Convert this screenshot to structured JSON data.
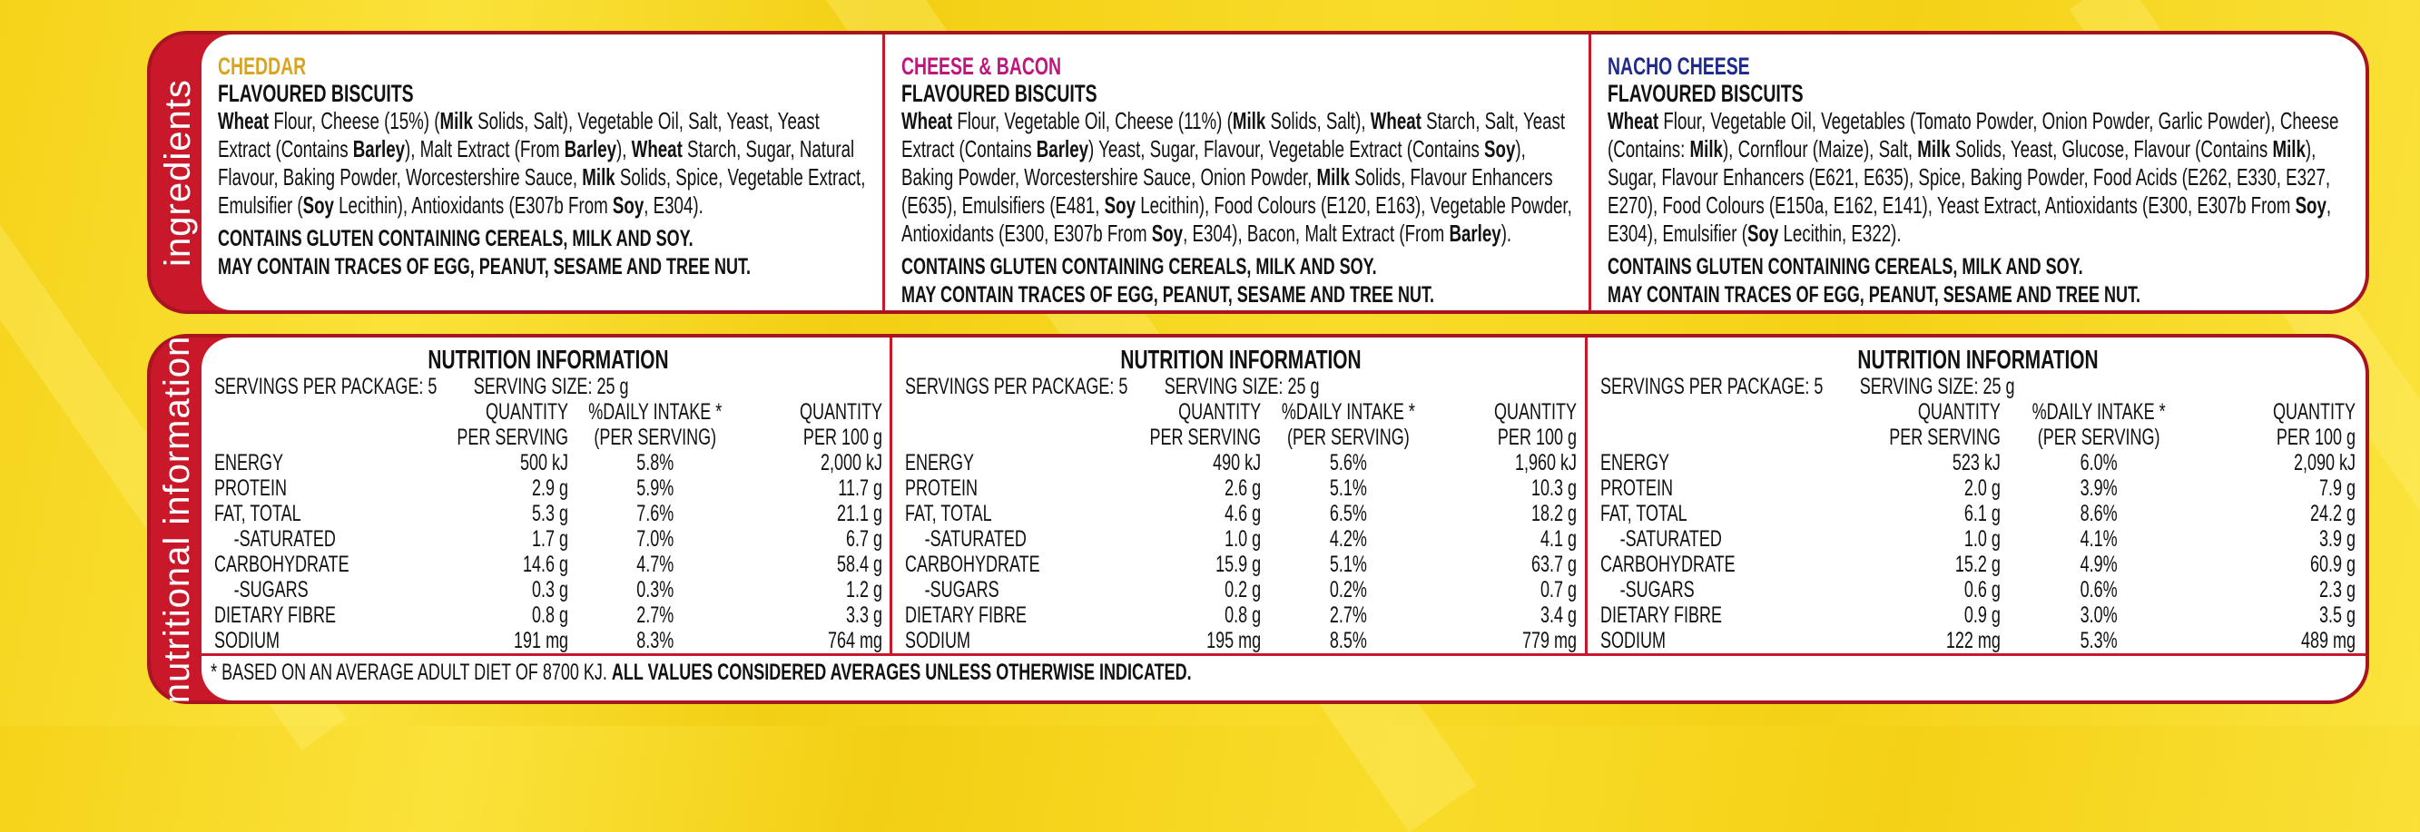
{
  "colors": {
    "background": "#f5d31a",
    "panel_red": "#c8182a",
    "cheddar": "#d9a520",
    "cheese_bacon": "#c0157a",
    "nacho": "#1f2a8a"
  },
  "ingredients": {
    "band_label": "ingredients",
    "products": [
      {
        "name": "CHEDDAR",
        "subtitle": "FLAVOURED BISCUITS",
        "text": [
          [
            "Wheat",
            1
          ],
          [
            " Flour, Cheese (15%) (",
            0
          ],
          [
            "Milk",
            1
          ],
          [
            " Solids, Salt), Vegetable Oil, Salt, Yeast, Yeast Extract (Contains ",
            0
          ],
          [
            "Barley",
            1
          ],
          [
            "), Malt Extract (From ",
            0
          ],
          [
            "Barley",
            1
          ],
          "), ",
          [
            "Wheat",
            1
          ],
          [
            " Starch, Sugar, Natural Flavour, Baking Powder, Worcestershire Sauce, ",
            0
          ],
          [
            "Milk",
            1
          ],
          [
            " Solids, Spice, Vegetable Extract, Emulsifier (",
            0
          ],
          [
            "Soy",
            1
          ],
          [
            " Lecithin), Antioxidants (E307b From ",
            0
          ],
          [
            "Soy",
            1
          ],
          [
            ", E304).",
            0
          ]
        ],
        "allergen1": "CONTAINS GLUTEN CONTAINING CEREALS, MILK AND SOY.",
        "allergen2": "MAY CONTAIN TRACES OF EGG, PEANUT, SESAME AND TREE NUT."
      },
      {
        "name": "CHEESE & BACON",
        "subtitle": "FLAVOURED BISCUITS",
        "text": [
          [
            "Wheat",
            1
          ],
          [
            " Flour, Vegetable Oil, Cheese (11%) (",
            0
          ],
          [
            "Milk",
            1
          ],
          [
            " Solids, Salt), ",
            0
          ],
          [
            "Wheat",
            1
          ],
          [
            " Starch, Salt, Yeast Extract (Contains ",
            0
          ],
          [
            "Barley",
            1
          ],
          [
            ") Yeast, Sugar, Flavour, Vegetable Extract (Contains ",
            0
          ],
          [
            "Soy",
            1
          ],
          [
            "), Baking Powder, Worcestershire Sauce, Onion Powder, ",
            0
          ],
          [
            "Milk",
            1
          ],
          [
            " Solids, Flavour Enhancers (E635), Emulsifiers (E481, ",
            0
          ],
          [
            "Soy",
            1
          ],
          [
            " Lecithin), Food Colours (E120, E163), Vegetable Powder, Antioxidants (E300, E307b From ",
            0
          ],
          [
            "Soy",
            1
          ],
          [
            ", E304), Bacon, Malt Extract (From ",
            0
          ],
          [
            "Barley",
            1
          ],
          [
            ").",
            0
          ]
        ],
        "allergen1": "CONTAINS GLUTEN CONTAINING CEREALS, MILK AND SOY.",
        "allergen2": "MAY CONTAIN TRACES OF EGG, PEANUT, SESAME AND TREE NUT."
      },
      {
        "name": "NACHO CHEESE",
        "subtitle": "FLAVOURED BISCUITS",
        "text": [
          [
            "Wheat",
            1
          ],
          [
            " Flour, Vegetable Oil, Vegetables (Tomato Powder, Onion Powder, Garlic Powder), Cheese (Contains: ",
            0
          ],
          [
            "Milk",
            1
          ],
          [
            "), Cornflour (Maize), Salt, ",
            0
          ],
          [
            "Milk",
            1
          ],
          [
            " Solids, Yeast, Glucose, Flavour (Contains ",
            0
          ],
          [
            "Milk",
            1
          ],
          [
            "), Sugar, Flavour Enhancers (E621, E635), Spice, Baking Powder, Food Acids (E262, E330, E327, E270), Food Colours (E150a, E162, E141), Yeast Extract, Antioxidants (E300, E307b From ",
            0
          ],
          [
            "Soy",
            1
          ],
          [
            ", E304), Emulsifier (",
            0
          ],
          [
            "Soy",
            1
          ],
          [
            " Lecithin, E322).",
            0
          ]
        ],
        "allergen1": "CONTAINS GLUTEN CONTAINING CEREALS, MILK AND SOY.",
        "allergen2": "MAY CONTAIN TRACES OF EGG, PEANUT, SESAME AND TREE NUT."
      }
    ]
  },
  "nutrition": {
    "band_label": "nutritional information",
    "footnote_plain": "* BASED ON AN AVERAGE ADULT DIET OF 8700 KJ. ",
    "footnote_bold": "ALL VALUES CONSIDERED AVERAGES UNLESS OTHERWISE INDICATED.",
    "headers": {
      "qty1": "QUANTITY",
      "qty2": "PER SERVING",
      "di1": "%DAILY INTAKE *",
      "di2": "(PER SERVING)",
      "h1": "QUANTITY",
      "h2": "PER 100 g"
    },
    "labels": [
      "ENERGY",
      "PROTEIN",
      "FAT, TOTAL",
      "-SATURATED",
      "CARBOHYDRATE",
      "-SUGARS",
      "DIETARY FIBRE",
      "SODIUM"
    ],
    "tables": [
      {
        "title": "NUTRITION INFORMATION",
        "servings": "SERVINGS PER PACKAGE: 5",
        "serving_size": "SERVING SIZE: 25 g",
        "rows": [
          [
            "500 kJ",
            "5.8%",
            "2,000 kJ"
          ],
          [
            "2.9 g",
            "5.9%",
            "11.7 g"
          ],
          [
            "5.3 g",
            "7.6%",
            "21.1 g"
          ],
          [
            "1.7 g",
            "7.0%",
            "6.7 g"
          ],
          [
            "14.6 g",
            "4.7%",
            "58.4 g"
          ],
          [
            "0.3 g",
            "0.3%",
            "1.2 g"
          ],
          [
            "0.8 g",
            "2.7%",
            "3.3 g"
          ],
          [
            "191 mg",
            "8.3%",
            "764 mg"
          ]
        ]
      },
      {
        "title": "NUTRITION INFORMATION",
        "servings": "SERVINGS PER PACKAGE: 5",
        "serving_size": "SERVING SIZE: 25 g",
        "rows": [
          [
            "490 kJ",
            "5.6%",
            "1,960 kJ"
          ],
          [
            "2.6 g",
            "5.1%",
            "10.3 g"
          ],
          [
            "4.6 g",
            "6.5%",
            "18.2 g"
          ],
          [
            "1.0 g",
            "4.2%",
            "4.1 g"
          ],
          [
            "15.9 g",
            "5.1%",
            "63.7 g"
          ],
          [
            "0.2 g",
            "0.2%",
            "0.7 g"
          ],
          [
            "0.8 g",
            "2.7%",
            "3.4 g"
          ],
          [
            "195 mg",
            "8.5%",
            "779 mg"
          ]
        ]
      },
      {
        "title": "NUTRITION INFORMATION",
        "servings": "SERVINGS PER PACKAGE: 5",
        "serving_size": "SERVING SIZE: 25 g",
        "rows": [
          [
            "523 kJ",
            "6.0%",
            "2,090 kJ"
          ],
          [
            "2.0 g",
            "3.9%",
            "7.9 g"
          ],
          [
            "6.1 g",
            "8.6%",
            "24.2 g"
          ],
          [
            "1.0 g",
            "4.1%",
            "3.9 g"
          ],
          [
            "15.2 g",
            "4.9%",
            "60.9 g"
          ],
          [
            "0.6 g",
            "0.6%",
            "2.3 g"
          ],
          [
            "0.9 g",
            "3.0%",
            "3.5 g"
          ],
          [
            "122 mg",
            "5.3%",
            "489 mg"
          ]
        ]
      }
    ]
  }
}
